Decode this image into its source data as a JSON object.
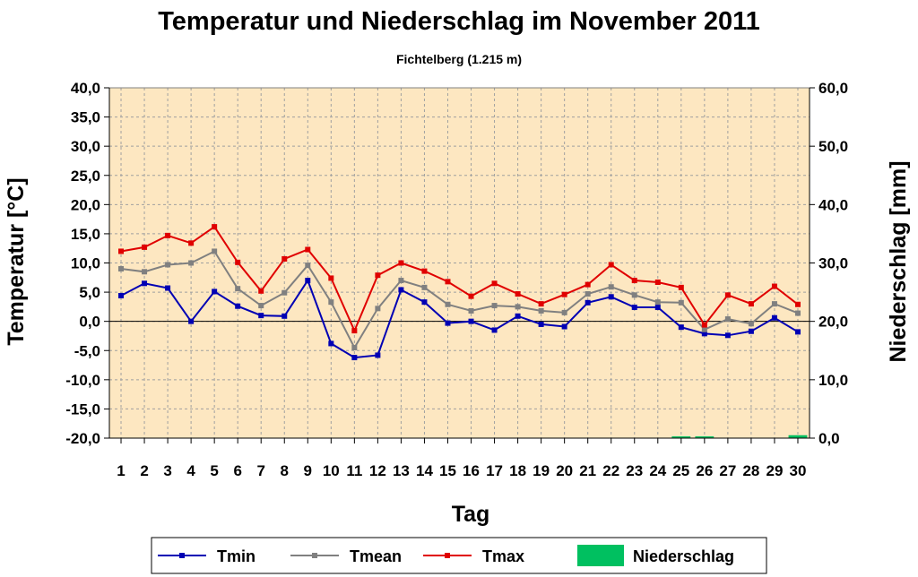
{
  "chart_data": {
    "type": "line",
    "title": "Temperatur und Niederschlag im November 2011",
    "subtitle": "Fichtelberg (1.215 m)",
    "xlabel": "Tag",
    "ylabel": "Temperatur [°C]",
    "y2label": "Niederschlag [mm]",
    "ylim": [
      -20,
      40
    ],
    "y2lim": [
      0,
      60
    ],
    "yticks": [
      "40,0",
      "35,0",
      "30,0",
      "25,0",
      "20,0",
      "15,0",
      "10,0",
      "5,0",
      "0,0",
      "-5,0",
      "-10,0",
      "-15,0",
      "-20,0"
    ],
    "y2ticks": [
      "60,0",
      "50,0",
      "40,0",
      "30,0",
      "20,0",
      "10,0",
      "0,0"
    ],
    "categories": [
      "1",
      "2",
      "3",
      "4",
      "5",
      "6",
      "7",
      "8",
      "9",
      "10",
      "11",
      "12",
      "13",
      "14",
      "15",
      "16",
      "17",
      "18",
      "19",
      "20",
      "21",
      "22",
      "23",
      "24",
      "25",
      "26",
      "27",
      "28",
      "29",
      "30"
    ],
    "grid": true,
    "legend_position": "bottom",
    "series": [
      {
        "name": "Tmin",
        "color": "#0000b4",
        "values": [
          4.4,
          6.5,
          5.7,
          0.0,
          5.1,
          2.6,
          1.0,
          0.9,
          7.0,
          -3.8,
          -6.2,
          -5.8,
          5.4,
          3.3,
          -0.3,
          0.0,
          -1.5,
          0.9,
          -0.5,
          -0.9,
          3.2,
          4.2,
          2.4,
          2.4,
          -1.0,
          -2.1,
          -2.4,
          -1.7,
          0.6,
          -1.8
        ]
      },
      {
        "name": "Tmean",
        "color": "#808080",
        "values": [
          9.0,
          8.5,
          9.7,
          10.0,
          12.0,
          5.6,
          2.7,
          4.9,
          9.6,
          3.3,
          -4.5,
          2.2,
          7.0,
          5.8,
          2.9,
          1.8,
          2.7,
          2.5,
          1.8,
          1.5,
          4.7,
          5.9,
          4.5,
          3.3,
          3.2,
          -1.4,
          0.4,
          -0.4,
          3.0,
          1.4
        ]
      },
      {
        "name": "Tmax",
        "color": "#e00000",
        "values": [
          12.0,
          12.7,
          14.7,
          13.4,
          16.2,
          10.1,
          5.2,
          10.7,
          12.3,
          7.4,
          -1.6,
          7.9,
          10.0,
          8.6,
          6.8,
          4.3,
          6.5,
          4.7,
          3.0,
          4.6,
          6.3,
          9.7,
          7.0,
          6.7,
          5.8,
          -0.6,
          4.5,
          3.0,
          6.0,
          2.9
        ]
      }
    ],
    "bars": {
      "name": "Niederschlag",
      "color": "#00c060",
      "values": [
        0,
        0,
        0,
        0,
        0,
        0,
        0,
        0,
        0,
        0,
        0,
        0,
        0,
        0,
        0,
        0,
        0,
        0,
        0,
        0,
        0,
        0,
        0,
        0,
        0.3,
        0.3,
        0,
        0,
        0,
        0.5
      ]
    }
  },
  "colors": {
    "plot_background": "#fde7c1",
    "zero_line": "#000000"
  }
}
